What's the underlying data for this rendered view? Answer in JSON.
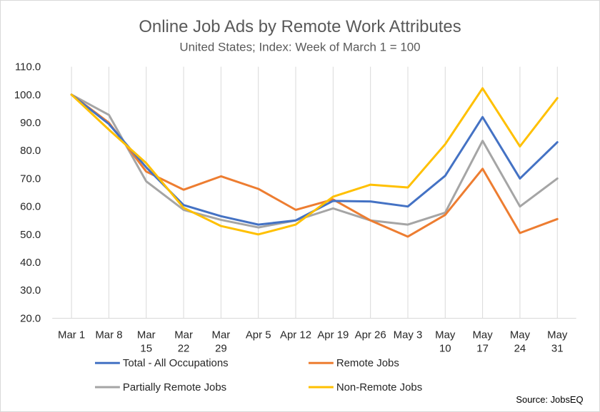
{
  "chart_data": {
    "type": "line",
    "title": "Online Job Ads by Remote Work Attributes",
    "subtitle": "United States; Index: Week of March 1 = 100",
    "categories": [
      [
        "Mar 1"
      ],
      [
        "Mar 8"
      ],
      [
        "Mar",
        "15"
      ],
      [
        "Mar",
        "22"
      ],
      [
        "Mar",
        "29"
      ],
      [
        "Apr 5"
      ],
      [
        "Apr 12"
      ],
      [
        "Apr 19"
      ],
      [
        "Apr 26"
      ],
      [
        "May 3"
      ],
      [
        "May",
        "10"
      ],
      [
        "May",
        "17"
      ],
      [
        "May",
        "24"
      ],
      [
        "May",
        "31"
      ]
    ],
    "y_ticks": [
      "20.0",
      "30.0",
      "40.0",
      "50.0",
      "60.0",
      "70.0",
      "80.0",
      "90.0",
      "100.0",
      "110.0"
    ],
    "ylim": [
      20,
      110
    ],
    "grid": "vertical",
    "legend_position": "bottom",
    "series": [
      {
        "name": "Total - All Occupations",
        "color": "#4472c4",
        "values": [
          100,
          89.5,
          74,
          60.5,
          56.5,
          53.5,
          55,
          62,
          61.8,
          60,
          71,
          92,
          70,
          83
        ]
      },
      {
        "name": "Remote Jobs",
        "color": "#ed7d31",
        "values": [
          100,
          90,
          72.5,
          66,
          70.8,
          66.3,
          58.8,
          62.5,
          55,
          49.2,
          57,
          73.5,
          50.5,
          55.5
        ]
      },
      {
        "name": "Partially Remote Jobs",
        "color": "#a5a5a5",
        "values": [
          100,
          92.8,
          69,
          58.8,
          55.2,
          52.5,
          55,
          59.3,
          55,
          53.5,
          57.8,
          83.5,
          60,
          70
        ]
      },
      {
        "name": "Non-Remote Jobs",
        "color": "#ffc000",
        "values": [
          100,
          87.5,
          75.5,
          59.5,
          53,
          50,
          53.5,
          63.5,
          67.8,
          66.8,
          82.3,
          102.3,
          81.5,
          98.8
        ]
      }
    ],
    "source": "Source: JobsEQ"
  }
}
